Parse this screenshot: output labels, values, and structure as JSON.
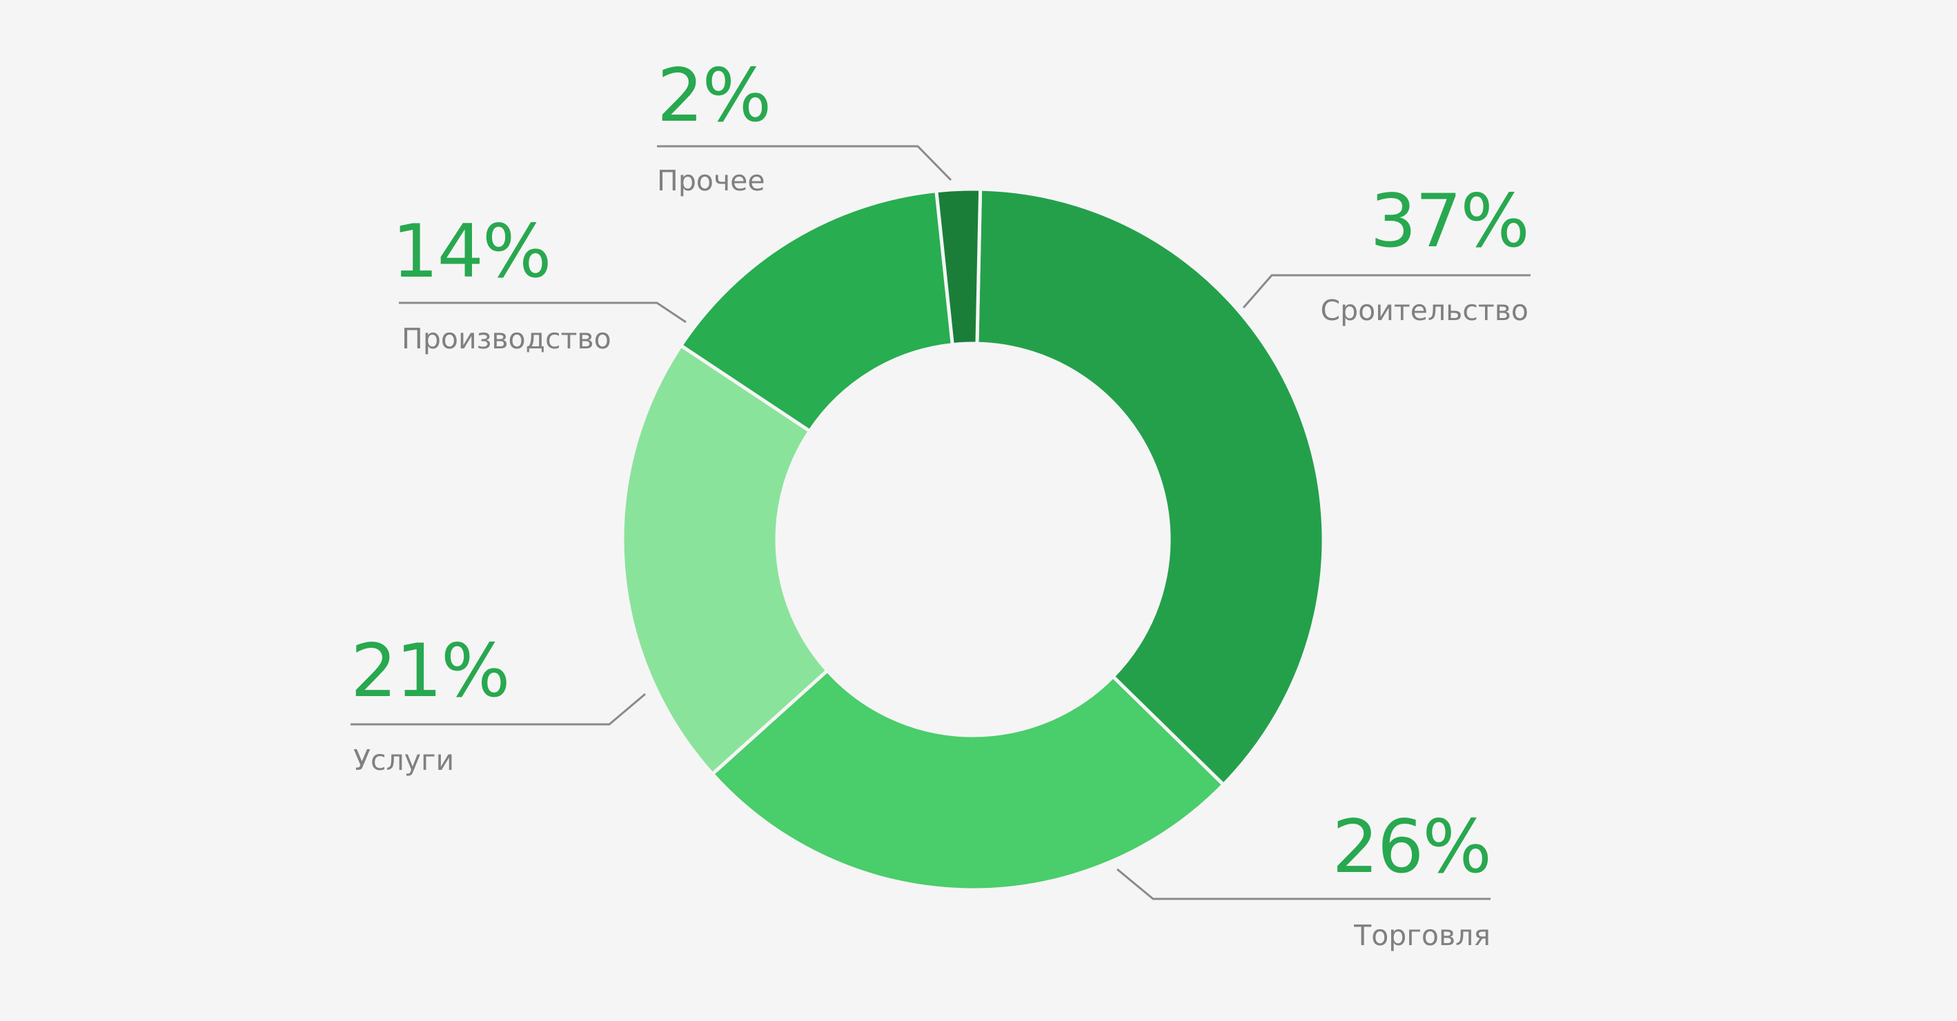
{
  "colors": {
    "background": "#f5f5f5",
    "percent_text": "#28a84f",
    "label_text": "#808080",
    "leader_line": "#8a8a8a",
    "slice_separator": "#f5f5f5"
  },
  "chart_data": {
    "type": "pie",
    "donut": true,
    "title": "",
    "slices": [
      {
        "label": "Сроительство",
        "value": 37,
        "percent_label": "37%",
        "color": "#24a04b"
      },
      {
        "label": "Торговля",
        "value": 26,
        "percent_label": "26%",
        "color": "#4acd6b"
      },
      {
        "label": "Услуги",
        "value": 21,
        "percent_label": "21%",
        "color": "#8ae39b"
      },
      {
        "label": "Производство",
        "value": 14,
        "percent_label": "14%",
        "color": "#28ad50"
      },
      {
        "label": "Прочее",
        "value": 2,
        "percent_label": "2%",
        "color": "#1a7e39"
      }
    ]
  }
}
